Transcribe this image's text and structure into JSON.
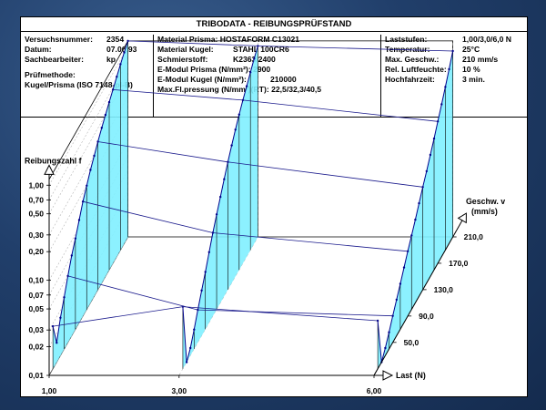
{
  "header": {
    "title": "TRIBODATA - REIBUNGSPRÜFSTAND"
  },
  "info": {
    "col1": [
      {
        "label": "Versuchsnummer:",
        "value": "2354"
      },
      {
        "label": "Datum:",
        "value": "07.06.93"
      },
      {
        "label": "Sachbearbeiter:",
        "value": "kp"
      }
    ],
    "method_label": "Prüfmethode:",
    "method_value": "Kugel/Prisma (ISO 7148-pl-B)",
    "col2": [
      {
        "label": "Material Prisma:",
        "value": "HOSTAFORM C13021"
      },
      {
        "label": "Material Kugel:",
        "value": "STAHL 100CR6"
      },
      {
        "label": "Schmierstoff:",
        "value": "K2363/2400"
      },
      {
        "label": "E-Modul Prisma (N/mm²):",
        "value": "2900"
      },
      {
        "label": "E-Modul Kugel (N/mm²):",
        "value": "210000"
      },
      {
        "label": "Max.Fl.pressung (N/mm²)(RT):",
        "value": "22,5/32,3/40,5"
      }
    ],
    "col3": [
      {
        "label": "Laststufen:",
        "value": "1,00/3,0/6,0 N"
      },
      {
        "label": "Temperatur:",
        "value": "25°C"
      },
      {
        "label": "Max. Geschw.:",
        "value": "210 mm/s"
      },
      {
        "label": "Rel. Luftfeuchte:",
        "value": "10 %"
      },
      {
        "label": "Hochfahrzeit:",
        "value": "3 min."
      }
    ]
  },
  "chart_data": {
    "type": "area",
    "y_label": "Reibungszahl f",
    "x_label": "Last (N)",
    "z_label_line1": "Geschw. v",
    "z_label_line2": "(mm/s)",
    "y_scale": "log",
    "y_ticks": [
      "0,01",
      "0,02",
      "0,03",
      "0,05",
      "0,07",
      "0,10",
      "0,20",
      "0,30",
      "0,50",
      "0,70",
      "1,00"
    ],
    "y_tick_values": [
      0.01,
      0.02,
      0.03,
      0.05,
      0.07,
      0.1,
      0.2,
      0.3,
      0.5,
      0.7,
      1.0
    ],
    "x_ticks": [
      "1,00",
      "3,00",
      "6,00"
    ],
    "x_tick_values": [
      1,
      3,
      6
    ],
    "z_ticks": [
      "50,0",
      "90,0",
      "130,0",
      "170,0",
      "210,0"
    ],
    "z_tick_values": [
      50,
      90,
      130,
      170,
      210
    ],
    "loads": [
      1,
      3,
      6
    ],
    "speeds": [
      10,
      20,
      30,
      40,
      50,
      60,
      70,
      80,
      90,
      100,
      110,
      120,
      130,
      140,
      150,
      160,
      170,
      180,
      190,
      200,
      210
    ],
    "series": [
      {
        "values": [
          0.028,
          0.016,
          0.025,
          0.035,
          0.05,
          0.07,
          0.09,
          0.12,
          0.16,
          0.2,
          0.25,
          0.3,
          0.36,
          0.43,
          0.5,
          0.58,
          0.67,
          0.78,
          0.9,
          1.02,
          1.15
        ]
      },
      {
        "values": [
          0.045,
          0.01,
          0.012,
          0.016,
          0.022,
          0.03,
          0.04,
          0.055,
          0.075,
          0.1,
          0.13,
          0.17,
          0.22,
          0.28,
          0.35,
          0.43,
          0.52,
          0.62,
          0.74,
          0.88,
          1.02
        ]
      },
      {
        "values": [
          0.032,
          0.01,
          0.012,
          0.015,
          0.019,
          0.024,
          0.03,
          0.038,
          0.048,
          0.06,
          0.075,
          0.095,
          0.12,
          0.15,
          0.19,
          0.24,
          0.31,
          0.4,
          0.52,
          0.68,
          0.9
        ]
      }
    ]
  }
}
